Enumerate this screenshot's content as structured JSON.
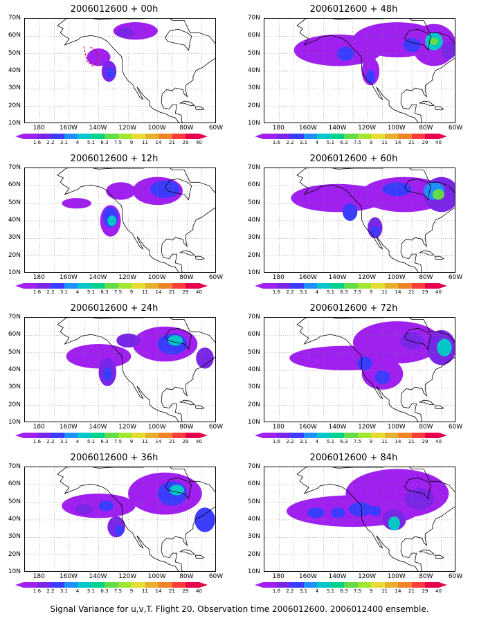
{
  "caption": "Signal Variance for u,v,T. Flight 20. Observation time 2006012600. 2006012400 ensemble.",
  "lat_labels": [
    "70N",
    "60N",
    "50N",
    "40N",
    "30N",
    "20N",
    "10N"
  ],
  "lon_labels": [
    "180",
    "160W",
    "140W",
    "120W",
    "100W",
    "80W",
    "60W"
  ],
  "colorbar": {
    "labels": [
      "1.6",
      "2.2",
      "3.1",
      "4",
      "5.1",
      "6.3",
      "7.5",
      "9",
      "11",
      "14",
      "21",
      "29",
      "40"
    ],
    "colors": [
      "#a020f0",
      "#7a26e6",
      "#3c3cff",
      "#1e90ff",
      "#00c8c8",
      "#00d28c",
      "#64dc46",
      "#a0e632",
      "#e6dc32",
      "#e6af2d",
      "#f08228",
      "#fa3c3c",
      "#e6004a"
    ]
  },
  "panels": [
    {
      "title": "2006012600 + 00h"
    },
    {
      "title": "2006012600 + 48h"
    },
    {
      "title": "2006012600 + 12h"
    },
    {
      "title": "2006012600 + 60h"
    },
    {
      "title": "2006012600 + 24h"
    },
    {
      "title": "2006012600 + 72h"
    },
    {
      "title": "2006012600 + 36h"
    },
    {
      "title": "2006012600 + 84h"
    }
  ],
  "map_extent": {
    "lon_min": -190,
    "lon_max": -60,
    "lat_min": 10,
    "lat_max": 70
  }
}
